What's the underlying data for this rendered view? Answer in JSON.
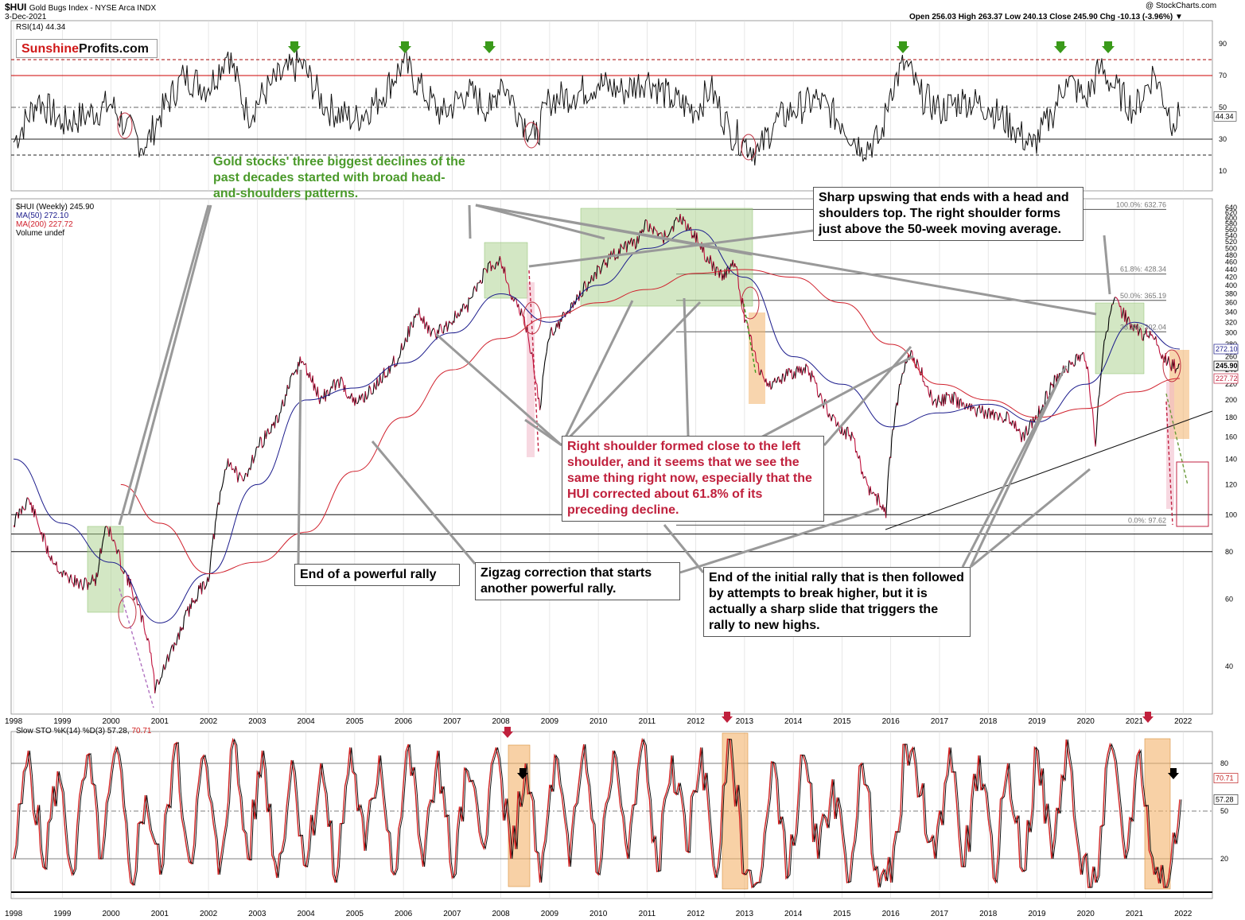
{
  "header": {
    "symbol": "$HUI",
    "name": "Gold Bugs Index - NYSE Arca INDX",
    "date": "3-Dec-2021",
    "credit": "@ StockCharts.com",
    "ohlc": "Open 256.03  High 263.37  Low 240.13  Close 245.90  Chg -10.13 (-3.96%) ▼"
  },
  "logo": {
    "part1": "Sunshine",
    "part2": "Profits.com"
  },
  "annotations": {
    "a1": "Gold stocks' three biggest declines of the past decades started with broad head-and-shoulders patterns.",
    "a2": "Sharp upswing that ends with a head and shoulders top. The right shoulder forms just above the 50-week moving average.",
    "a3": "Right shoulder formed close to the left shoulder, and it seems that we see the same thing right now, especially that the HUI corrected about 61.8% of its preceding decline.",
    "a4": "End of a powerful rally",
    "a5": "Zigzag correction that starts another powerful rally.",
    "a6": "End of the initial rally that is then followed by attempts to break higher, but it is actually a sharp slide that triggers the rally to new highs."
  },
  "colors": {
    "price_up": "#000000",
    "price_down": "#c0103c",
    "ma50": "#1c1c8c",
    "ma200": "#d0202c",
    "green_box": "#a8d08a",
    "orange_box": "#f3b36b",
    "stoch_d": "#d02020"
  },
  "chart_data": [
    {
      "panel": "rsi",
      "type": "line",
      "title": "RSI(14) 44.34",
      "last_value": 44.34,
      "last_label": "44.34",
      "ylim": [
        10,
        95
      ],
      "yticks": [
        10,
        30,
        50,
        70,
        90
      ],
      "reference_lines": [
        80,
        70,
        50,
        30,
        20
      ],
      "x": [
        1998.0,
        1998.5,
        1999.0,
        1999.5,
        2000.0,
        2000.3,
        2000.7,
        2001.0,
        2001.5,
        2002.0,
        2002.4,
        2002.8,
        2003.3,
        2003.9,
        2004.4,
        2005.0,
        2005.5,
        2006.0,
        2006.4,
        2006.8,
        2007.3,
        2007.8,
        2008.0,
        2008.4,
        2008.7,
        2009.0,
        2009.5,
        2010.0,
        2010.5,
        2011.0,
        2011.5,
        2012.0,
        2012.3,
        2012.7,
        2013.0,
        2013.3,
        2013.6,
        2014.0,
        2014.5,
        2015.0,
        2015.4,
        2015.8,
        2016.0,
        2016.3,
        2016.6,
        2017.0,
        2017.5,
        2018.0,
        2018.5,
        2018.9,
        2019.3,
        2019.6,
        2020.0,
        2020.3,
        2020.6,
        2021.0,
        2021.4,
        2021.8,
        2021.93
      ],
      "values": [
        28,
        55,
        40,
        45,
        52,
        38,
        25,
        45,
        70,
        62,
        85,
        45,
        65,
        78,
        50,
        42,
        55,
        78,
        60,
        45,
        60,
        48,
        68,
        45,
        30,
        55,
        58,
        65,
        60,
        68,
        55,
        48,
        62,
        35,
        28,
        22,
        40,
        48,
        55,
        40,
        25,
        30,
        62,
        78,
        58,
        48,
        55,
        50,
        38,
        25,
        45,
        68,
        55,
        75,
        62,
        48,
        72,
        40,
        44.34
      ]
    },
    {
      "panel": "price",
      "type": "line",
      "title": "$HUI (Weekly) 245.90",
      "legend": [
        "$HUI (Weekly) 245.90",
        "MA(50) 272.10",
        "MA(200) 227.72",
        "Volume undef"
      ],
      "ylim": [
        30,
        660
      ],
      "yscale": "log",
      "yticks": [
        40,
        60,
        80,
        100,
        120,
        140,
        160,
        180,
        200,
        220,
        240,
        260,
        280,
        300,
        320,
        340,
        360,
        380,
        400,
        420,
        440,
        460,
        480,
        500,
        520,
        540,
        560,
        580,
        600,
        620,
        640
      ],
      "xlabels": [
        "1998",
        "1999",
        "2000",
        "2001",
        "2002",
        "2003",
        "2004",
        "2005",
        "2006",
        "2007",
        "2008",
        "2009",
        "2010",
        "2011",
        "2012",
        "2013",
        "2014",
        "2015",
        "2016",
        "2017",
        "2018",
        "2019",
        "2020",
        "2021",
        "2022"
      ],
      "x": [
        1998.0,
        1998.3,
        1998.7,
        1999.0,
        1999.4,
        1999.7,
        1999.9,
        2000.2,
        2000.5,
        2000.8,
        2000.9,
        2001.3,
        2001.7,
        2002.0,
        2002.4,
        2002.7,
        2003.0,
        2003.4,
        2003.9,
        2004.3,
        2004.7,
        2005.0,
        2005.4,
        2005.9,
        2006.3,
        2006.6,
        2006.9,
        2007.3,
        2007.7,
        2008.0,
        2008.2,
        2008.5,
        2008.8,
        2009.0,
        2009.3,
        2009.7,
        2010.0,
        2010.4,
        2010.8,
        2011.0,
        2011.3,
        2011.7,
        2011.9,
        2012.2,
        2012.5,
        2012.8,
        2013.0,
        2013.3,
        2013.5,
        2013.8,
        2014.0,
        2014.3,
        2014.6,
        2014.9,
        2015.2,
        2015.5,
        2015.9,
        2016.1,
        2016.4,
        2016.6,
        2016.9,
        2017.2,
        2017.6,
        2018.0,
        2018.4,
        2018.7,
        2019.0,
        2019.4,
        2019.7,
        2020.0,
        2020.2,
        2020.4,
        2020.6,
        2020.9,
        2021.1,
        2021.4,
        2021.6,
        2021.8,
        2021.93
      ],
      "values": [
        95,
        110,
        80,
        70,
        65,
        68,
        95,
        75,
        60,
        45,
        35,
        45,
        60,
        68,
        140,
        120,
        150,
        175,
        255,
        200,
        225,
        195,
        215,
        260,
        340,
        295,
        315,
        350,
        440,
        470,
        380,
        320,
        190,
        300,
        330,
        390,
        440,
        490,
        520,
        580,
        530,
        600,
        560,
        480,
        420,
        460,
        330,
        240,
        220,
        230,
        235,
        240,
        200,
        170,
        160,
        120,
        102,
        190,
        270,
        240,
        195,
        205,
        190,
        185,
        180,
        160,
        180,
        230,
        250,
        260,
        150,
        300,
        360,
        320,
        300,
        295,
        260,
        245,
        245.9
      ],
      "ma50": {
        "label": "MA(50) 272.10",
        "last": 272.1,
        "x": [
          1998.0,
          1999.0,
          2000.0,
          2001.0,
          2002.0,
          2003.0,
          2004.0,
          2005.0,
          2006.0,
          2007.0,
          2008.0,
          2009.0,
          2010.0,
          2011.0,
          2012.0,
          2013.0,
          2014.0,
          2015.0,
          2016.0,
          2017.0,
          2018.0,
          2019.0,
          2020.0,
          2021.0,
          2021.93
        ],
        "values": [
          140,
          95,
          75,
          52,
          70,
          120,
          200,
          215,
          250,
          300,
          380,
          320,
          400,
          500,
          560,
          420,
          260,
          220,
          170,
          185,
          195,
          175,
          220,
          320,
          272.1
        ]
      },
      "ma200": {
        "label": "MA(200) 227.72",
        "last": 227.72,
        "x": [
          2000.2,
          2001.0,
          2002.0,
          2003.0,
          2004.0,
          2005.0,
          2006.0,
          2007.0,
          2008.0,
          2009.0,
          2010.0,
          2011.0,
          2012.0,
          2013.0,
          2014.0,
          2015.0,
          2016.0,
          2017.0,
          2018.0,
          2019.0,
          2020.0,
          2021.0,
          2021.93
        ],
        "values": [
          120,
          95,
          70,
          75,
          90,
          130,
          180,
          240,
          290,
          330,
          360,
          390,
          430,
          440,
          420,
          360,
          280,
          220,
          200,
          180,
          190,
          210,
          227.72
        ]
      },
      "fib_levels": [
        {
          "label": "100.0%: 632.76",
          "value": 632.76
        },
        {
          "label": "61.8%: 428.34",
          "value": 428.34
        },
        {
          "label": "50.0%: 365.19",
          "value": 365.19
        },
        {
          "label": "38.2%: 302.04",
          "value": 302.04
        },
        {
          "label": "0.0%: 97.62",
          "value": 97.62
        }
      ],
      "price_labels": [
        {
          "text": "272.10",
          "value": 272.1
        },
        {
          "text": "245.90",
          "value": 245.9
        },
        {
          "text": "227.72",
          "value": 227.72
        }
      ]
    },
    {
      "panel": "stochastic",
      "type": "line",
      "title": "Slow STO %K(14) %D(3) 57.28, 70.71",
      "title_parts": {
        "prefix": "Slow STO %K(14) %D(3) 57.28, ",
        "d_value": "70.71"
      },
      "k_last": 57.28,
      "d_last": 70.71,
      "ylim": [
        0,
        100
      ],
      "yticks": [
        20,
        50,
        80
      ],
      "labels": [
        {
          "text": "70.71",
          "value": 70.71
        },
        {
          "text": "57.28",
          "value": 57.28
        }
      ],
      "x": [
        1998.0,
        1998.3,
        1998.6,
        1998.9,
        1999.2,
        1999.5,
        1999.8,
        2000.1,
        2000.4,
        2000.7,
        2001.0,
        2001.3,
        2001.6,
        2001.9,
        2002.2,
        2002.5,
        2002.8,
        2003.1,
        2003.4,
        2003.7,
        2004.0,
        2004.3,
        2004.6,
        2004.9,
        2005.2,
        2005.5,
        2005.8,
        2006.1,
        2006.4,
        2006.7,
        2007.0,
        2007.3,
        2007.6,
        2007.9,
        2008.2,
        2008.5,
        2008.8,
        2009.1,
        2009.4,
        2009.7,
        2010.0,
        2010.3,
        2010.6,
        2010.9,
        2011.2,
        2011.5,
        2011.8,
        2012.1,
        2012.4,
        2012.7,
        2013.0,
        2013.3,
        2013.6,
        2013.9,
        2014.2,
        2014.5,
        2014.8,
        2015.1,
        2015.4,
        2015.7,
        2016.0,
        2016.3,
        2016.6,
        2016.9,
        2017.2,
        2017.5,
        2017.8,
        2018.1,
        2018.4,
        2018.7,
        2019.0,
        2019.3,
        2019.6,
        2019.9,
        2020.2,
        2020.5,
        2020.8,
        2021.1,
        2021.4,
        2021.7,
        2021.93
      ],
      "values": [
        20,
        88,
        15,
        75,
        10,
        85,
        20,
        90,
        5,
        60,
        10,
        92,
        18,
        85,
        10,
        95,
        20,
        88,
        8,
        82,
        15,
        80,
        5,
        90,
        25,
        85,
        10,
        92,
        15,
        88,
        8,
        75,
        30,
        90,
        20,
        80,
        5,
        85,
        15,
        92,
        10,
        88,
        20,
        95,
        12,
        85,
        25,
        90,
        8,
        95,
        10,
        5,
        80,
        10,
        85,
        20,
        70,
        5,
        80,
        15,
        5,
        92,
        60,
        20,
        90,
        15,
        85,
        8,
        80,
        12,
        88,
        20,
        95,
        10,
        5,
        92,
        20,
        88,
        10,
        8,
        57.28
      ]
    }
  ]
}
